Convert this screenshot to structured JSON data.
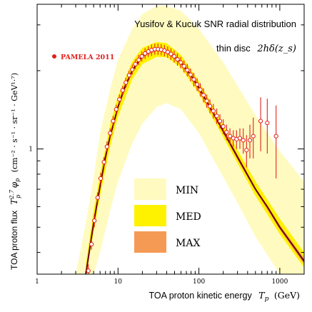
{
  "chart_data": {
    "type": "line",
    "title": "Yusifov & Kucuk SNR radial distribution",
    "subtitle_text": "thin disc",
    "subtitle_formula": "2hδ(z_s)",
    "xlabel_text": "TOA proton kinetic energy",
    "xlabel_unit": "(GeV)",
    "xlabel_symbol_base": "T",
    "xlabel_symbol_sub": "p",
    "ylabel_text": "TOA proton flux",
    "ylabel_symbol_base": "T",
    "ylabel_symbol_sub": "p",
    "ylabel_symbol_sup": "2.7",
    "ylabel_symbol_phi": "φ",
    "ylabel_unit": "(cm⁻² · s⁻¹ · sr⁻¹ · GeV¹·⁷)",
    "x_scale": "log",
    "y_scale": "log",
    "xlim": [
      1,
      2000
    ],
    "ylim": [
      0.33,
      3.6
    ],
    "x_ticks": [
      1,
      10,
      100,
      1000
    ],
    "x_tick_labels": [
      "1",
      "10",
      "100",
      "1000"
    ],
    "y_ticks": [
      1
    ],
    "y_tick_labels": [
      "1"
    ],
    "legend_position": "bottom-center",
    "legend_entries": [
      {
        "label": "MIN",
        "color": "#fffbc0"
      },
      {
        "label": "MED",
        "color": "#fff200"
      },
      {
        "label": "MAX",
        "color": "#f59a55"
      }
    ],
    "data_legend_label": "PAMELA 2011",
    "colors": {
      "data": "#e3211c",
      "curve": "#6b0000",
      "min": "#fffbc0",
      "med": "#fff200",
      "max": "#f59a55"
    },
    "series": [
      {
        "name": "PAMELA 2011",
        "kind": "points",
        "x": [
          4.3,
          4.7,
          5.1,
          5.6,
          6.1,
          6.7,
          7.3,
          8.0,
          8.7,
          9.5,
          10.4,
          11.4,
          12.5,
          13.7,
          15.0,
          16.4,
          18.0,
          19.7,
          21.6,
          23.7,
          26.0,
          28.5,
          31.2,
          34.2,
          37.5,
          41.1,
          45.1,
          49.5,
          54.3,
          59.6,
          65.4,
          71.8,
          78.8,
          86.5,
          95.0,
          104,
          114,
          125,
          137,
          151,
          166,
          182,
          200,
          220,
          242,
          266,
          292,
          321,
          353,
          388,
          427,
          470,
          580,
          700,
          900
        ],
        "y": [
          0.34,
          0.43,
          0.53,
          0.65,
          0.77,
          0.89,
          1.02,
          1.15,
          1.28,
          1.42,
          1.55,
          1.68,
          1.8,
          1.92,
          2.02,
          2.12,
          2.2,
          2.27,
          2.33,
          2.37,
          2.4,
          2.42,
          2.42,
          2.41,
          2.39,
          2.36,
          2.32,
          2.27,
          2.21,
          2.15,
          2.08,
          2.01,
          1.93,
          1.85,
          1.77,
          1.69,
          1.61,
          1.53,
          1.46,
          1.4,
          1.34,
          1.28,
          1.22,
          1.16,
          1.12,
          1.1,
          1.09,
          1.1,
          1.08,
          0.99,
          1.08,
          1.12,
          1.28,
          1.26,
          1.12
        ],
        "yerr": [
          0.02,
          0.02,
          0.03,
          0.03,
          0.04,
          0.04,
          0.05,
          0.05,
          0.06,
          0.06,
          0.07,
          0.07,
          0.08,
          0.08,
          0.09,
          0.09,
          0.1,
          0.1,
          0.11,
          0.11,
          0.12,
          0.12,
          0.12,
          0.12,
          0.12,
          0.12,
          0.12,
          0.12,
          0.12,
          0.11,
          0.11,
          0.11,
          0.11,
          0.11,
          0.1,
          0.1,
          0.1,
          0.09,
          0.09,
          0.09,
          0.09,
          0.08,
          0.08,
          0.08,
          0.08,
          0.08,
          0.09,
          0.1,
          0.12,
          0.14,
          0.16,
          0.2,
          0.3,
          0.3,
          0.35
        ]
      },
      {
        "kind": "curve",
        "x": [
          4.0,
          5.0,
          6.0,
          7.0,
          8.0,
          10,
          12,
          15,
          20,
          25,
          30,
          35,
          40,
          50,
          60,
          80,
          100,
          150,
          200,
          300,
          500,
          700,
          1000,
          1500,
          2000
        ],
        "y": [
          0.33,
          0.52,
          0.72,
          0.93,
          1.12,
          1.45,
          1.72,
          2.0,
          2.28,
          2.38,
          2.41,
          2.4,
          2.37,
          2.27,
          2.15,
          1.92,
          1.72,
          1.38,
          1.17,
          0.93,
          0.7,
          0.6,
          0.5,
          0.42,
          0.37
        ]
      },
      {
        "name": "MIN",
        "kind": "band",
        "x": [
          3.0,
          4.0,
          5.0,
          6.0,
          8.0,
          10,
          15,
          20,
          30,
          40,
          60,
          100,
          200,
          300,
          500,
          1000,
          2000
        ],
        "y_low": [
          0.33,
          0.33,
          0.33,
          0.4,
          0.58,
          0.75,
          1.05,
          1.25,
          1.45,
          1.5,
          1.42,
          1.15,
          0.78,
          0.62,
          0.46,
          0.33,
          0.33
        ],
        "y_high": [
          0.33,
          0.52,
          0.78,
          1.15,
          1.7,
          2.2,
          2.9,
          3.3,
          3.55,
          3.55,
          3.4,
          2.9,
          2.15,
          1.75,
          1.35,
          0.98,
          0.75
        ]
      },
      {
        "name": "MED",
        "kind": "band",
        "x": [
          4.0,
          5.0,
          6.0,
          8.0,
          10,
          15,
          20,
          30,
          40,
          60,
          100,
          200,
          300,
          500,
          1000,
          2000
        ],
        "y_low": [
          0.33,
          0.48,
          0.66,
          1.02,
          1.33,
          1.85,
          2.12,
          2.26,
          2.25,
          2.05,
          1.63,
          1.11,
          0.88,
          0.66,
          0.47,
          0.35
        ],
        "y_high": [
          0.36,
          0.58,
          0.8,
          1.24,
          1.6,
          2.17,
          2.45,
          2.58,
          2.55,
          2.3,
          1.82,
          1.24,
          0.99,
          0.75,
          0.54,
          0.4
        ]
      },
      {
        "name": "MAX",
        "kind": "band",
        "x": [
          4.0,
          5.0,
          6.0,
          8.0,
          10,
          15,
          20,
          30,
          40,
          60,
          100,
          200,
          300,
          500,
          1000,
          2000
        ],
        "y_low": [
          0.32,
          0.51,
          0.71,
          1.1,
          1.43,
          1.97,
          2.25,
          2.38,
          2.34,
          2.12,
          1.69,
          1.15,
          0.91,
          0.69,
          0.49,
          0.36
        ],
        "y_high": [
          0.34,
          0.53,
          0.73,
          1.14,
          1.47,
          2.03,
          2.31,
          2.44,
          2.4,
          2.18,
          1.75,
          1.19,
          0.95,
          0.71,
          0.51,
          0.38
        ]
      }
    ]
  }
}
